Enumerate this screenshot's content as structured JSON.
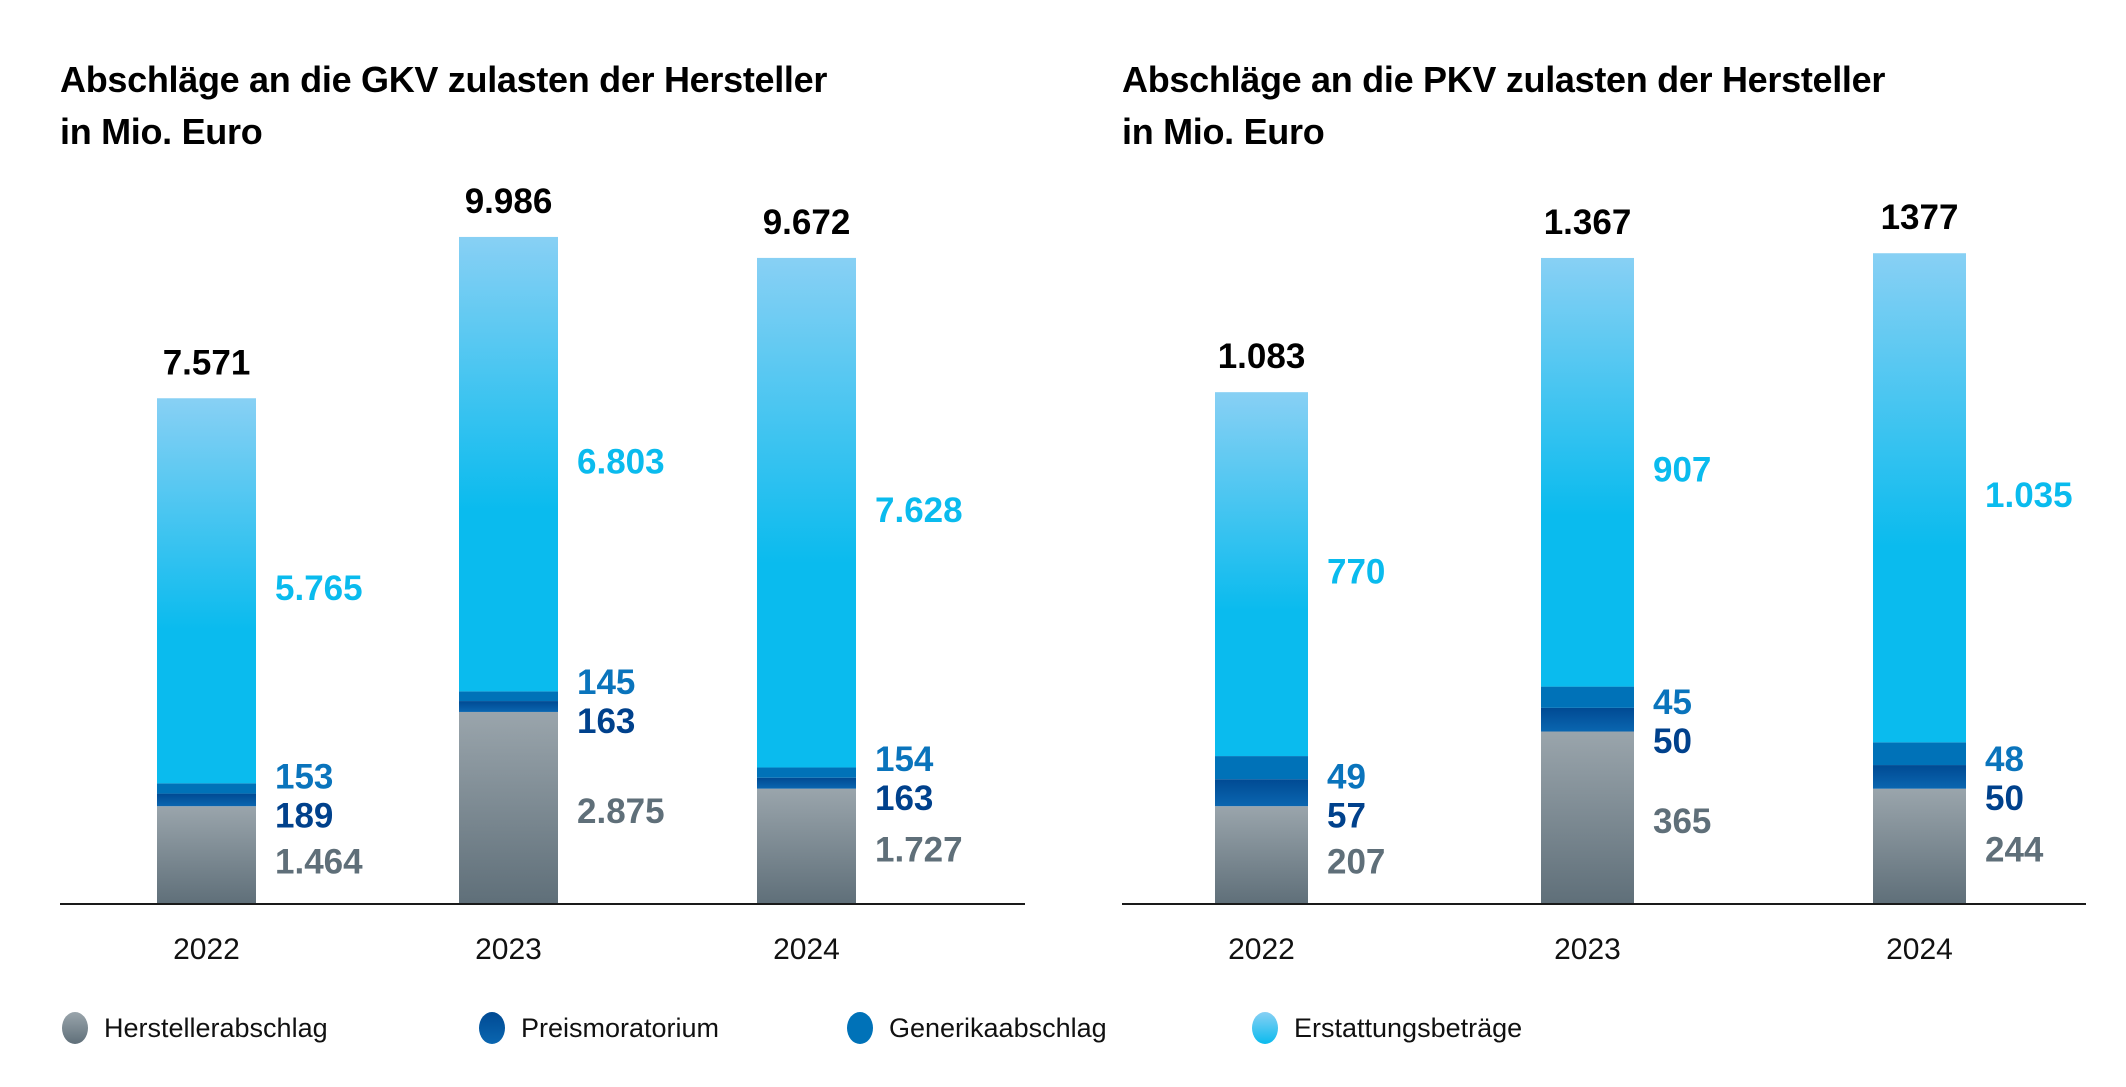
{
  "legend": [
    {
      "key": "hersteller",
      "label": "Herstellerabschlag",
      "color_top": "#9AA5AC",
      "color_bottom": "#5F6F79"
    },
    {
      "key": "preis",
      "label": "Preismoratorium",
      "color_top": "#004A93",
      "color_bottom": "#0A66B0"
    },
    {
      "key": "generika",
      "label": "Generikaabschlag",
      "color_top": "#0072B8",
      "color_bottom": "#0072B8"
    },
    {
      "key": "erstattung",
      "label": "Erstattungsbeträge",
      "color_top": "#88D0F4",
      "color_bottom": "#0ABBEE"
    }
  ],
  "label_colors": {
    "hersteller": "#5F6F79",
    "preis": "#00418C",
    "generika": "#0A74BC",
    "erstattung": "#0ABBEE"
  },
  "chart_data": [
    {
      "id": "gkv",
      "type": "bar",
      "stacked": true,
      "title": "Abschläge an die GKV zulasten der Hersteller",
      "subtitle": "in Mio. Euro",
      "title_lines": [
        "Abschläge an die GKV zulasten der Hersteller",
        "in Mio. Euro"
      ],
      "categories": [
        "2022",
        "2023",
        "2024"
      ],
      "series": [
        {
          "key": "hersteller",
          "name": "Herstellerabschlag",
          "values": [
            1464,
            2875,
            1727
          ],
          "display": [
            "1.464",
            "2.875",
            "1.727"
          ]
        },
        {
          "key": "preis",
          "name": "Preismoratorium",
          "values": [
            189,
            163,
            163
          ],
          "display": [
            "189",
            "163",
            "163"
          ]
        },
        {
          "key": "generika",
          "name": "Generikaabschlag",
          "values": [
            153,
            145,
            154
          ],
          "display": [
            "153",
            "145",
            "154"
          ]
        },
        {
          "key": "erstattung",
          "name": "Erstattungsbeträge",
          "values": [
            5765,
            6803,
            7628
          ],
          "display": [
            "5.765",
            "6.803",
            "7.628"
          ]
        }
      ],
      "totals": [
        7571,
        9986,
        9672
      ],
      "totals_display": [
        "7.571",
        "9.986",
        "9.672"
      ],
      "xlabel": "",
      "ylabel": "",
      "ylim": [
        0,
        10500
      ],
      "grid": false,
      "legend_position": "bottom"
    },
    {
      "id": "pkv",
      "type": "bar",
      "stacked": true,
      "title": "Abschläge an die PKV zulasten der Hersteller",
      "subtitle": "in Mio. Euro",
      "title_lines": [
        "Abschläge an die PKV zulasten der Hersteller",
        "in Mio. Euro"
      ],
      "categories": [
        "2022",
        "2023",
        "2024"
      ],
      "series": [
        {
          "key": "hersteller",
          "name": "Herstellerabschlag",
          "values": [
            207,
            365,
            244
          ],
          "display": [
            "207",
            "365",
            "244"
          ]
        },
        {
          "key": "preis",
          "name": "Preismoratorium",
          "values": [
            57,
            50,
            50
          ],
          "display": [
            "57",
            "50",
            "50"
          ]
        },
        {
          "key": "generika",
          "name": "Generikaabschlag",
          "values": [
            49,
            45,
            48
          ],
          "display": [
            "49",
            "45",
            "48"
          ]
        },
        {
          "key": "erstattung",
          "name": "Erstattungsbeträge",
          "values": [
            770,
            907,
            1035
          ],
          "display": [
            "770",
            "907",
            "1.035"
          ]
        }
      ],
      "totals": [
        1083,
        1367,
        1377
      ],
      "totals_display": [
        "1.083",
        "1.367",
        "1377"
      ],
      "xlabel": "",
      "ylabel": "",
      "ylim": [
        0,
        1450
      ],
      "grid": false,
      "legend_position": "bottom"
    }
  ]
}
